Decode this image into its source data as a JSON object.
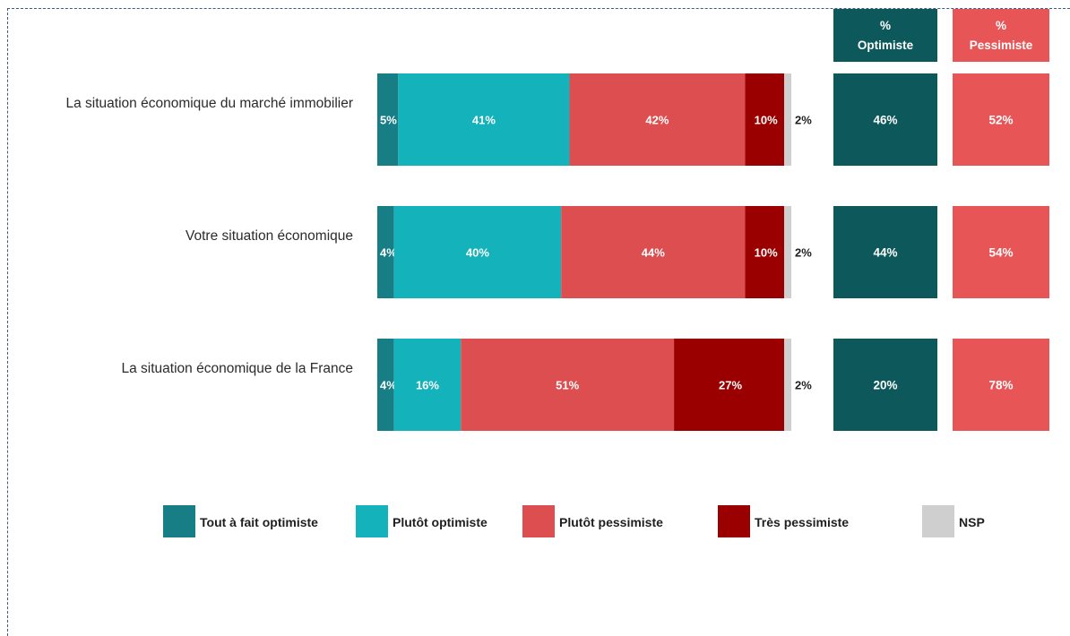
{
  "chart_data": {
    "type": "bar",
    "orientation": "horizontal",
    "stacked": true,
    "categories": [
      "La situation économique du marché immobilier",
      "Votre situation économique",
      "La situation économique de la France"
    ],
    "series": [
      {
        "name": "Tout à fait optimiste",
        "values": [
          5,
          4,
          4
        ],
        "color": "#177e85"
      },
      {
        "name": "Plutôt optimiste",
        "values": [
          41,
          40,
          16
        ],
        "color": "#14b2ba"
      },
      {
        "name": "Plutôt pessimiste",
        "values": [
          42,
          44,
          51
        ],
        "color": "#dc4e50"
      },
      {
        "name": "Très pessimiste",
        "values": [
          10,
          10,
          27
        ],
        "color": "#9b0000"
      },
      {
        "name": "NSP",
        "values": [
          2,
          2,
          2
        ],
        "color": "#cfcfcf"
      }
    ],
    "value_suffix": "%",
    "summary_columns": [
      {
        "header_line1": "%",
        "header_line2": "Optimiste",
        "values": [
          46,
          44,
          20
        ],
        "color": "#0d585a"
      },
      {
        "header_line1": "%",
        "header_line2": "Pessimiste",
        "values": [
          52,
          54,
          78
        ],
        "color": "#e85556"
      }
    ],
    "legend_position": "bottom",
    "grid": false
  }
}
